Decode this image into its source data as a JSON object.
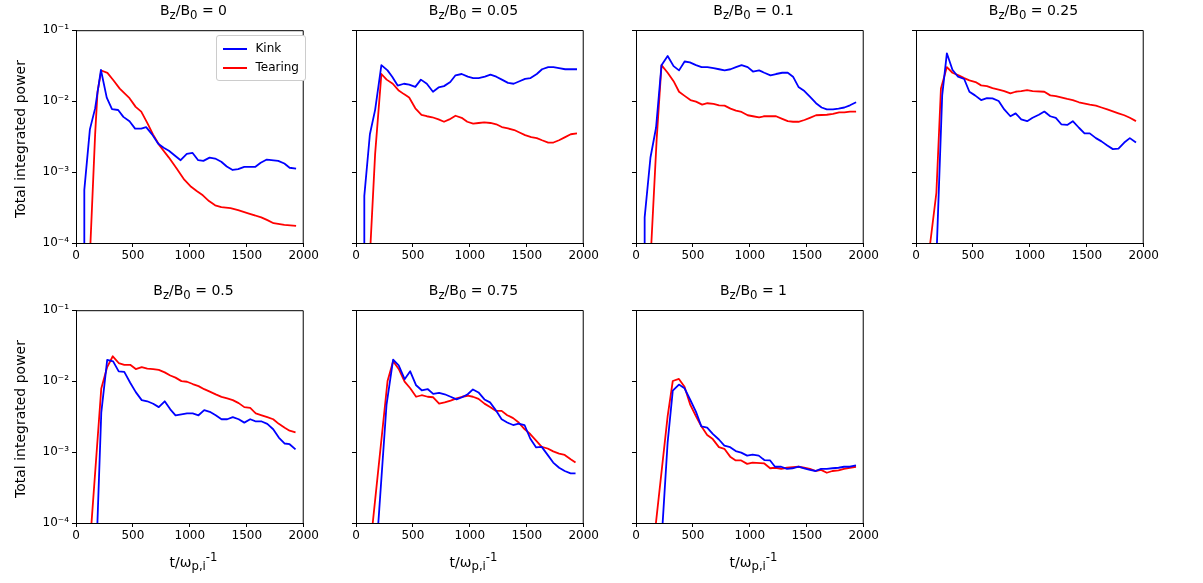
{
  "chart_data": [
    {
      "type": "line",
      "title": "B$_{z}$/B$_{0}$ = 0",
      "ylabel": "Total integrated power",
      "log": true,
      "legend": "top right",
      "xlim": [
        0,
        2000
      ],
      "xticks": [
        0,
        500,
        1000,
        1500,
        2000
      ],
      "ylim": [
        0.0001,
        0.1
      ],
      "yticks": [
        {
          "value": 0.0001,
          "label": "10⁻⁴"
        },
        {
          "value": 0.001,
          "label": "10⁻³"
        },
        {
          "value": 0.01,
          "label": "10⁻²"
        },
        {
          "value": 0.1,
          "label": "10⁻¹"
        }
      ],
      "series": [
        {
          "name": "Kink",
          "color": "#0000ff",
          "x": [
            73,
            73,
            122,
            168,
            219,
            270,
            316,
            370,
            416,
            470,
            519,
            573,
            616,
            668,
            722,
            770,
            816,
            870,
            919,
            973,
            1024,
            1073,
            1119,
            1173,
            1222,
            1276,
            1324,
            1376,
            1424,
            1478,
            1573,
            1622,
            1676,
            1776,
            1830,
            1876,
            1933
          ],
          "values": [
            0.0001,
            0.00056,
            0.004,
            0.0079,
            0.0275,
            0.0112,
            0.0077,
            0.0075,
            0.006,
            0.0052,
            0.0041,
            0.0041,
            0.0043,
            0.0034,
            0.0025,
            0.0022,
            0.002,
            0.0017,
            0.00147,
            0.0018,
            0.00186,
            0.00147,
            0.00144,
            0.0016,
            0.00155,
            0.0014,
            0.0012,
            0.00107,
            0.0011,
            0.00118,
            0.00118,
            0.00135,
            0.0015,
            0.00144,
            0.00132,
            0.00115,
            0.00112
          ]
        },
        {
          "name": "Tearing",
          "color": "#ff0000",
          "x": [
            127,
            168,
            189,
            222,
            276,
            330,
            384,
            470,
            524,
            573,
            627,
            676,
            735,
            816,
            884,
            951,
            1011,
            1060,
            1114,
            1168,
            1222,
            1276,
            1357,
            1424,
            1519,
            1627,
            1681,
            1735,
            1830,
            1933
          ],
          "values": [
            0.0001,
            0.0034,
            0.0135,
            0.027,
            0.025,
            0.0195,
            0.015,
            0.011,
            0.0083,
            0.0071,
            0.0049,
            0.0034,
            0.00235,
            0.0016,
            0.00112,
            0.00078,
            0.00062,
            0.00054,
            0.00047,
            0.00039,
            0.00034,
            0.00032,
            0.00031,
            0.00029,
            0.00026,
            0.00023,
            0.00021,
            0.00019,
            0.00018,
            0.000174
          ]
        }
      ]
    },
    {
      "type": "line",
      "title": "B$_{z}$/B$_{0}$ = 0.05",
      "log": true,
      "tick_labels": "x",
      "xlim": [
        0,
        2000
      ],
      "xticks": [
        0,
        500,
        1000,
        1500,
        2000
      ],
      "ylim": [
        0.0001,
        0.1
      ],
      "yticks": [
        {
          "value": 0.0001,
          "label": null
        },
        {
          "value": 0.001,
          "label": null
        },
        {
          "value": 0.01,
          "label": null
        },
        {
          "value": 0.1,
          "label": null
        }
      ],
      "series": [
        {
          "color": "#0000ff",
          "x": [
            73,
            73,
            122,
            168,
            223,
            277,
            318,
            366,
            421,
            467,
            521,
            570,
            622,
            676,
            725,
            773,
            828,
            874,
            928,
            982,
            1029,
            1077,
            1132,
            1181,
            1232,
            1281,
            1335,
            1384,
            1436,
            1485,
            1533,
            1588,
            1634,
            1688,
            1734,
            1783,
            1837,
            1941
          ],
          "values": [
            0.0001,
            0.00046,
            0.0034,
            0.0075,
            0.032,
            0.027,
            0.022,
            0.0165,
            0.0175,
            0.017,
            0.0158,
            0.02,
            0.0175,
            0.0135,
            0.0155,
            0.0162,
            0.0185,
            0.023,
            0.024,
            0.022,
            0.021,
            0.021,
            0.022,
            0.0235,
            0.022,
            0.02,
            0.018,
            0.0175,
            0.019,
            0.0205,
            0.021,
            0.024,
            0.028,
            0.03,
            0.03,
            0.029,
            0.028,
            0.028
          ]
        },
        {
          "color": "#ff0000",
          "x": [
            128,
            168,
            223,
            269,
            323,
            372,
            421,
            467,
            521,
            575,
            622,
            670,
            725,
            773,
            820,
            874,
            928,
            977,
            1029,
            1077,
            1126,
            1181,
            1232,
            1281,
            1335,
            1390,
            1436,
            1485,
            1539,
            1588,
            1634,
            1688,
            1734,
            1783,
            1837,
            1886,
            1941
          ],
          "values": [
            0.0001,
            0.0018,
            0.024,
            0.02,
            0.0175,
            0.0142,
            0.0125,
            0.0112,
            0.0079,
            0.0064,
            0.0061,
            0.0059,
            0.0055,
            0.0051,
            0.0055,
            0.0062,
            0.0058,
            0.0051,
            0.0048,
            0.0049,
            0.005,
            0.0049,
            0.0047,
            0.0043,
            0.0041,
            0.0039,
            0.0036,
            0.0033,
            0.0031,
            0.003,
            0.0028,
            0.0026,
            0.0026,
            0.0028,
            0.0031,
            0.0034,
            0.0035
          ]
        }
      ]
    },
    {
      "type": "line",
      "title": "B$_{z}$/B$_{0}$ = 0.1",
      "log": true,
      "tick_labels": "x",
      "xlim": [
        0,
        2000
      ],
      "xticks": [
        0,
        500,
        1000,
        1500,
        2000
      ],
      "ylim": [
        0.0001,
        0.1
      ],
      "yticks": [
        {
          "value": 0.0001,
          "label": null
        },
        {
          "value": 0.001,
          "label": null
        },
        {
          "value": 0.01,
          "label": null
        },
        {
          "value": 0.1,
          "label": null
        }
      ],
      "series": [
        {
          "color": "#0000ff",
          "x": [
            76,
            76,
            127,
            176,
            224,
            278,
            330,
            378,
            427,
            473,
            527,
            576,
            627,
            681,
            730,
            778,
            830,
            878,
            927,
            981,
            1027,
            1081,
            1127,
            1181,
            1230,
            1284,
            1333,
            1379,
            1427,
            1479,
            1527,
            1581,
            1630,
            1676,
            1730,
            1779,
            1830,
            1879,
            1933
          ],
          "values": [
            0.0001,
            0.00023,
            0.0016,
            0.0042,
            0.032,
            0.043,
            0.031,
            0.027,
            0.036,
            0.035,
            0.032,
            0.03,
            0.03,
            0.029,
            0.028,
            0.027,
            0.028,
            0.03,
            0.032,
            0.03,
            0.026,
            0.027,
            0.025,
            0.023,
            0.024,
            0.025,
            0.025,
            0.022,
            0.0158,
            0.0138,
            0.0115,
            0.0093,
            0.0081,
            0.0076,
            0.0076,
            0.0078,
            0.0081,
            0.0087,
            0.0096
          ]
        },
        {
          "color": "#ff0000",
          "x": [
            135,
            181,
            224,
            278,
            330,
            378,
            427,
            478,
            527,
            581,
            627,
            681,
            730,
            778,
            830,
            878,
            927,
            981,
            1027,
            1081,
            1127,
            1230,
            1284,
            1333,
            1379,
            1427,
            1479,
            1527,
            1581,
            1676,
            1730,
            1784,
            1830,
            1879,
            1933
          ],
          "values": [
            0.0001,
            0.0028,
            0.032,
            0.025,
            0.019,
            0.0135,
            0.0118,
            0.0103,
            0.0098,
            0.0089,
            0.0093,
            0.0091,
            0.0087,
            0.0086,
            0.0078,
            0.0073,
            0.007,
            0.0063,
            0.0061,
            0.0059,
            0.0061,
            0.0061,
            0.0056,
            0.0052,
            0.0051,
            0.0051,
            0.0054,
            0.0058,
            0.0063,
            0.0064,
            0.0066,
            0.0069,
            0.0069,
            0.0071,
            0.0071
          ]
        }
      ]
    },
    {
      "type": "line",
      "title": "B$_{z}$/B$_{0}$ = 0.25",
      "log": true,
      "tick_labels": "x",
      "xlim": [
        0,
        2000
      ],
      "xticks": [
        0,
        500,
        1000,
        1500,
        2000
      ],
      "ylim": [
        0.0001,
        0.1
      ],
      "yticks": [
        {
          "value": 0.0001,
          "label": null
        },
        {
          "value": 0.001,
          "label": null
        },
        {
          "value": 0.01,
          "label": null
        },
        {
          "value": 0.1,
          "label": null
        }
      ],
      "series": [
        {
          "color": "#0000ff",
          "x": [
            184,
            230,
            271,
            320,
            369,
            423,
            469,
            518,
            572,
            623,
            672,
            726,
            775,
            829,
            875,
            924,
            976,
            1024,
            1079,
            1127,
            1179,
            1228,
            1276,
            1328,
            1377,
            1431,
            1480,
            1526,
            1580,
            1629,
            1680,
            1729,
            1778,
            1829,
            1878,
            1932
          ],
          "values": [
            0.0001,
            0.012,
            0.047,
            0.0276,
            0.022,
            0.0204,
            0.0135,
            0.012,
            0.0103,
            0.011,
            0.0109,
            0.01,
            0.0076,
            0.0061,
            0.0067,
            0.0055,
            0.0052,
            0.0058,
            0.0064,
            0.0071,
            0.0061,
            0.0058,
            0.0047,
            0.0046,
            0.0052,
            0.0042,
            0.0035,
            0.0035,
            0.003,
            0.0027,
            0.00236,
            0.0021,
            0.00213,
            0.0026,
            0.003,
            0.0026
          ]
        },
        {
          "color": "#ff0000",
          "x": [
            125,
            179,
            219,
            271,
            320,
            374,
            423,
            469,
            523,
            572,
            623,
            672,
            726,
            775,
            829,
            875,
            924,
            976,
            1024,
            1127,
            1179,
            1228,
            1328,
            1377,
            1431,
            1526,
            1580,
            1629,
            1680,
            1778,
            1829,
            1878,
            1932
          ],
          "values": [
            0.0001,
            0.00051,
            0.015,
            0.03,
            0.025,
            0.023,
            0.021,
            0.0195,
            0.0185,
            0.0166,
            0.0162,
            0.0152,
            0.0145,
            0.0138,
            0.0128,
            0.0135,
            0.0138,
            0.0142,
            0.0138,
            0.0135,
            0.012,
            0.0117,
            0.0107,
            0.0103,
            0.0096,
            0.0089,
            0.0086,
            0.0081,
            0.0076,
            0.0067,
            0.0063,
            0.0058,
            0.0052
          ]
        }
      ]
    },
    {
      "type": "line",
      "title": "B$_{z}$/B$_{0}$ = 0.5",
      "xlabel": "t/ω$_{p,i}$$^{-1}$",
      "ylabel": "Total integrated power",
      "log": true,
      "xlim": [
        0,
        2000
      ],
      "xticks": [
        0,
        500,
        1000,
        1500,
        2000
      ],
      "ylim": [
        0.0001,
        0.1
      ],
      "yticks": [
        {
          "value": 0.0001,
          "label": "10⁻⁴"
        },
        {
          "value": 0.001,
          "label": "10⁻³"
        },
        {
          "value": 0.01,
          "label": "10⁻²"
        },
        {
          "value": 0.1,
          "label": "10⁻¹"
        }
      ],
      "series": [
        {
          "color": "#0000ff",
          "x": [
            188,
            222,
            274,
            326,
            375,
            424,
            476,
            525,
            577,
            626,
            678,
            727,
            779,
            828,
            874,
            926,
            975,
            1025,
            1076,
            1126,
            1175,
            1227,
            1278,
            1328,
            1377,
            1429,
            1478,
            1530,
            1579,
            1631,
            1680,
            1732,
            1781,
            1833,
            1876,
            1928
          ],
          "values": [
            0.0001,
            0.0036,
            0.02,
            0.019,
            0.0137,
            0.0135,
            0.0095,
            0.007,
            0.0054,
            0.0052,
            0.0048,
            0.0043,
            0.0052,
            0.004,
            0.0033,
            0.0034,
            0.0035,
            0.0035,
            0.0033,
            0.0039,
            0.0037,
            0.0033,
            0.0029,
            0.0029,
            0.0031,
            0.0029,
            0.0026,
            0.0029,
            0.0027,
            0.0027,
            0.0025,
            0.0021,
            0.0016,
            0.00132,
            0.00129,
            0.00109
          ]
        },
        {
          "color": "#ff0000",
          "x": [
            136,
            222,
            274,
            323,
            375,
            424,
            476,
            525,
            577,
            626,
            678,
            727,
            779,
            828,
            874,
            926,
            975,
            1025,
            1076,
            1126,
            1175,
            1227,
            1278,
            1328,
            1377,
            1429,
            1478,
            1530,
            1579,
            1631,
            1680,
            1732,
            1781,
            1833,
            1876,
            1928
          ],
          "values": [
            0.0001,
            0.0079,
            0.0158,
            0.0224,
            0.018,
            0.017,
            0.017,
            0.0148,
            0.0158,
            0.015,
            0.0148,
            0.0144,
            0.0133,
            0.012,
            0.0112,
            0.01,
            0.0098,
            0.0091,
            0.0085,
            0.0077,
            0.0071,
            0.0065,
            0.006,
            0.0057,
            0.0054,
            0.0049,
            0.0043,
            0.0042,
            0.0035,
            0.0033,
            0.0031,
            0.0029,
            0.0025,
            0.0022,
            0.002,
            0.0019
          ]
        }
      ]
    },
    {
      "type": "line",
      "title": "B$_{z}$/B$_{0}$ = 0.75",
      "xlabel": "t/ω$_{p,i}$$^{-1}$",
      "log": true,
      "tick_labels": "x",
      "xlim": [
        0,
        2000
      ],
      "xticks": [
        0,
        500,
        1000,
        1500,
        2000
      ],
      "ylim": [
        0.0001,
        0.1
      ],
      "yticks": [
        {
          "value": 0.0001,
          "label": null
        },
        {
          "value": 0.001,
          "label": null
        },
        {
          "value": 0.01,
          "label": null
        },
        {
          "value": 0.1,
          "label": null
        }
      ],
      "series": [
        {
          "color": "#0000ff",
          "x": [
            196,
            268,
            326,
            375,
            427,
            476,
            528,
            577,
            629,
            678,
            730,
            779,
            831,
            883,
            932,
            981,
            1027,
            1076,
            1128,
            1177,
            1227,
            1279,
            1328,
            1380,
            1429,
            1480,
            1530,
            1582,
            1631,
            1683,
            1732,
            1784,
            1833,
            1885,
            1928
          ],
          "values": [
            0.0001,
            0.0046,
            0.02,
            0.0166,
            0.0106,
            0.0137,
            0.0087,
            0.0074,
            0.0077,
            0.0066,
            0.0068,
            0.0065,
            0.006,
            0.0055,
            0.0059,
            0.0065,
            0.0076,
            0.0069,
            0.0055,
            0.005,
            0.0039,
            0.0029,
            0.0026,
            0.0024,
            0.0025,
            0.0024,
            0.00155,
            0.00116,
            0.00118,
            0.00091,
            0.00071,
            0.0006,
            0.00054,
            0.0005,
            0.0005
          ]
        },
        {
          "color": "#ff0000",
          "x": [
            147,
            277,
            326,
            375,
            427,
            476,
            528,
            577,
            629,
            678,
            730,
            779,
            831,
            883,
            932,
            981,
            1027,
            1076,
            1128,
            1177,
            1227,
            1279,
            1328,
            1380,
            1429,
            1480,
            1530,
            1582,
            1631,
            1683,
            1732,
            1784,
            1833,
            1885,
            1928
          ],
          "values": [
            0.0001,
            0.01,
            0.019,
            0.0148,
            0.0098,
            0.0079,
            0.006,
            0.0063,
            0.006,
            0.0059,
            0.0048,
            0.005,
            0.0053,
            0.0057,
            0.006,
            0.0062,
            0.006,
            0.0056,
            0.0048,
            0.0043,
            0.0038,
            0.0038,
            0.0033,
            0.003,
            0.0026,
            0.0021,
            0.00179,
            0.00145,
            0.00118,
            0.00112,
            0.00102,
            0.00095,
            0.00091,
            0.00079,
            0.00071
          ]
        }
      ]
    },
    {
      "type": "line",
      "title": "B$_{z}$/B$_{0}$ = 1",
      "xlabel": "t/ω$_{p,i}$$^{-1}$",
      "log": true,
      "tick_labels": "x",
      "xlim": [
        0,
        2000
      ],
      "xticks": [
        0,
        500,
        1000,
        1500,
        2000
      ],
      "ylim": [
        0.0001,
        0.1
      ],
      "yticks": [
        {
          "value": 0.0001,
          "label": null
        },
        {
          "value": 0.001,
          "label": null
        },
        {
          "value": 0.01,
          "label": null
        },
        {
          "value": 0.1,
          "label": null
        }
      ],
      "series": [
        {
          "color": "#0000ff",
          "x": [
            234,
            278,
            323,
            377,
            426,
            477,
            526,
            574,
            625,
            674,
            728,
            776,
            827,
            876,
            924,
            976,
            1024,
            1078,
            1127,
            1178,
            1221,
            1275,
            1326,
            1374,
            1428,
            1477,
            1528,
            1577,
            1625,
            1676,
            1725,
            1779,
            1827,
            1878,
            1932
          ],
          "values": [
            0.0001,
            0.00138,
            0.0073,
            0.0089,
            0.0079,
            0.0054,
            0.0037,
            0.0023,
            0.0022,
            0.0018,
            0.0015,
            0.00123,
            0.00117,
            0.00103,
            0.00098,
            0.00089,
            0.00092,
            0.00089,
            0.00077,
            0.00076,
            0.00062,
            0.00062,
            0.00058,
            0.00059,
            0.00062,
            0.00059,
            0.00056,
            0.00054,
            0.00058,
            0.00058,
            0.00059,
            0.0006,
            0.00062,
            0.00062,
            0.00065
          ]
        },
        {
          "color": "#ff0000",
          "x": [
            175,
            278,
            323,
            377,
            426,
            477,
            526,
            574,
            625,
            674,
            728,
            776,
            827,
            876,
            924,
            976,
            1024,
            1127,
            1178,
            1226,
            1275,
            1326,
            1428,
            1477,
            1528,
            1577,
            1625,
            1676,
            1725,
            1779,
            1827,
            1878,
            1932
          ],
          "values": [
            0.0001,
            0.0032,
            0.01,
            0.0107,
            0.0083,
            0.0046,
            0.0032,
            0.0023,
            0.00174,
            0.00152,
            0.00117,
            0.00111,
            0.00086,
            0.00076,
            0.00076,
            0.00068,
            0.00071,
            0.00069,
            0.00059,
            0.0006,
            0.00058,
            0.0006,
            0.00062,
            0.0006,
            0.00058,
            0.00054,
            0.00056,
            0.00051,
            0.00054,
            0.00055,
            0.00058,
            0.0006,
            0.00062
          ]
        }
      ]
    }
  ]
}
